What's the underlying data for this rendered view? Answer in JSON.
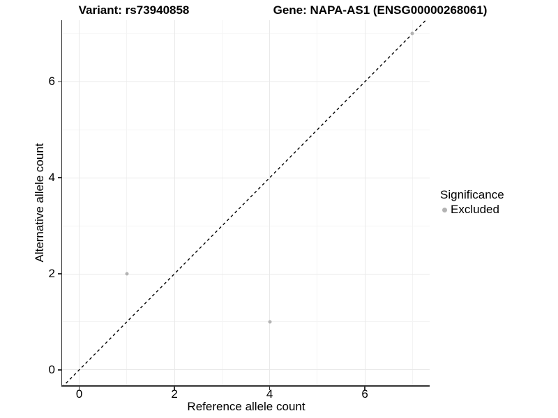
{
  "titles": {
    "variant": "Variant: rs73940858",
    "gene": "Gene: NAPA-AS1 (ENSG00000268061)"
  },
  "legend": {
    "title": "Significance",
    "items": [
      {
        "label": "Excluded",
        "marker": "circle-icon",
        "color": "#b3b3b3"
      }
    ]
  },
  "colors": {
    "point": "#b3b3b3",
    "axis_line": "#333333",
    "grid_major": "#e9e9e9",
    "grid_minor": "#f4f4f4",
    "identity_line": "#000000",
    "background": "#ffffff"
  },
  "chart_data": {
    "type": "scatter",
    "title": "Variant: rs73940858    Gene: NAPA-AS1 (ENSG00000268061)",
    "xlabel": "Reference allele count",
    "ylabel": "Alternative allele count",
    "xlim": [
      -0.36,
      7.36
    ],
    "ylim": [
      -0.32,
      7.28
    ],
    "x_ticks": [
      0,
      2,
      4,
      6
    ],
    "y_ticks": [
      0,
      2,
      4,
      6
    ],
    "x_minor_ticks": [
      1,
      3,
      5,
      7
    ],
    "y_minor_ticks": [
      1,
      3,
      5,
      7
    ],
    "grid": true,
    "legend_position": "right",
    "series": [
      {
        "name": "Excluded",
        "color": "#b3b3b3",
        "points": [
          {
            "x": 1,
            "y": 2
          },
          {
            "x": 4,
            "y": 1
          },
          {
            "x": 7,
            "y": 7
          }
        ]
      }
    ],
    "reference_line": {
      "kind": "identity",
      "slope": 1,
      "intercept": 0,
      "style": "dashed",
      "color": "#000000"
    }
  }
}
